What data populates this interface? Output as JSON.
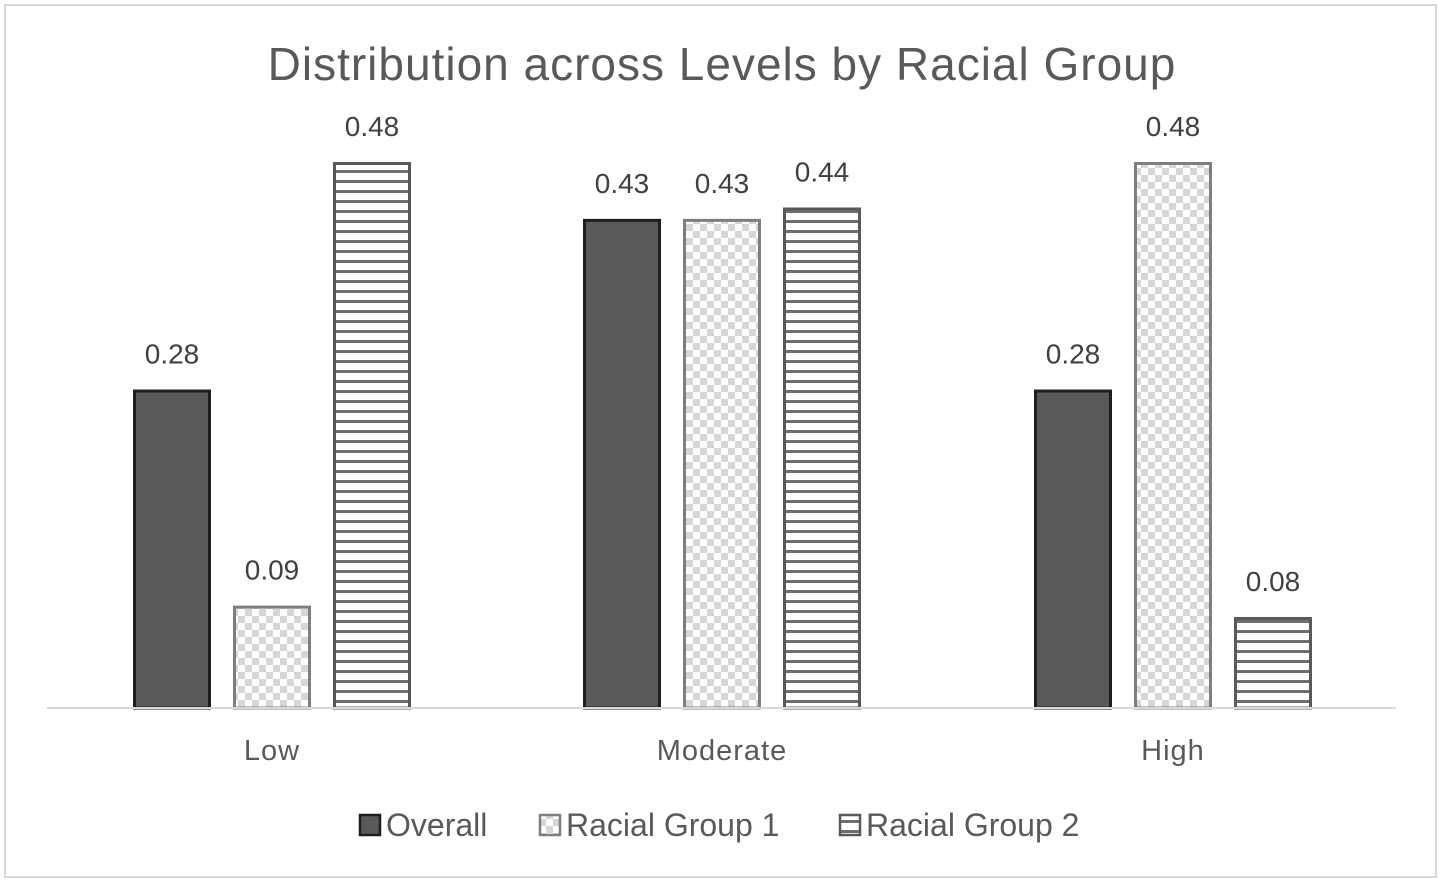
{
  "chart_data": {
    "type": "bar",
    "title": "Distribution across Levels by Racial Group",
    "categories": [
      "Low",
      "Moderate",
      "High"
    ],
    "series": [
      {
        "name": "Overall",
        "values": [
          0.28,
          0.43,
          0.28
        ],
        "labels": [
          "0.28",
          "0.43",
          "0.28"
        ],
        "pattern": "solid",
        "color": "#595959"
      },
      {
        "name": "Racial Group 1",
        "values": [
          0.09,
          0.43,
          0.48
        ],
        "labels": [
          "0.09",
          "0.43",
          "0.48"
        ],
        "pattern": "checker",
        "color": "#d9d9d9"
      },
      {
        "name": "Racial Group 2",
        "values": [
          0.48,
          0.44,
          0.08
        ],
        "labels": [
          "0.48",
          "0.44",
          "0.08"
        ],
        "pattern": "horizontal-stripes",
        "color": "#595959"
      }
    ],
    "ylim": [
      0,
      0.48
    ],
    "xlabel": "",
    "ylabel": "",
    "grid": false,
    "legend": "bottom-center"
  }
}
